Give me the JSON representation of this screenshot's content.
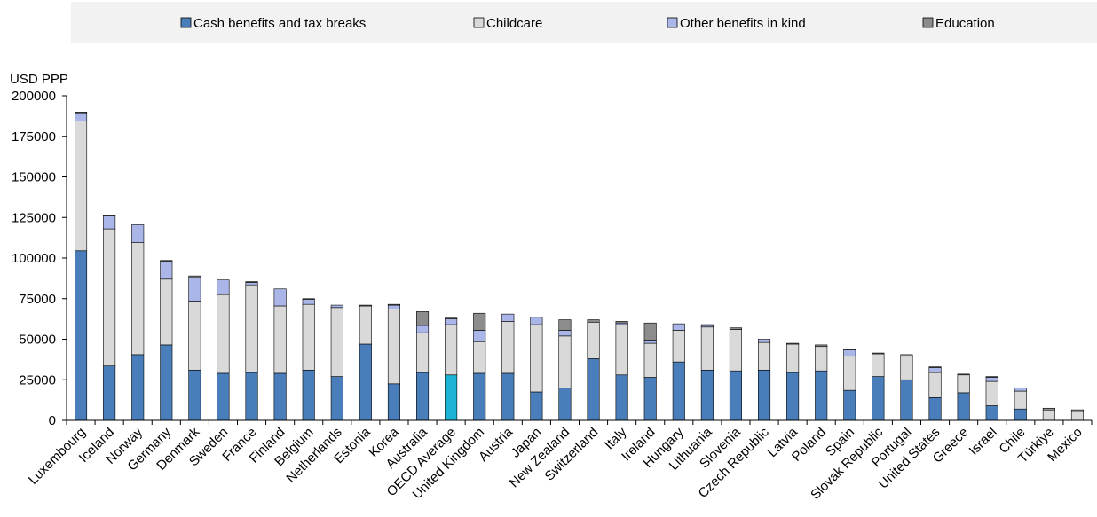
{
  "chart_data": {
    "type": "bar",
    "stacked": true,
    "ylabel": "USD PPP",
    "ylim": [
      0,
      200000
    ],
    "yticks": [
      0,
      25000,
      50000,
      75000,
      100000,
      125000,
      150000,
      175000,
      200000
    ],
    "legend_position": "top",
    "categories": [
      "Luxembourg",
      "Iceland",
      "Norway",
      "Germany",
      "Denmark",
      "Sweden",
      "France",
      "Finland",
      "Belgium",
      "Netherlands",
      "Estonia",
      "Korea",
      "Australia",
      "OECD Average",
      "United Kingdom",
      "Austria",
      "Japan",
      "New Zealand",
      "Switzerland",
      "Italy",
      "Ireland",
      "Hungary",
      "Lithuania",
      "Slovenia",
      "Czech Republic",
      "Latvia",
      "Poland",
      "Spain",
      "Slovak Republic",
      "Portugal",
      "United States",
      "Greece",
      "Israel",
      "Chile",
      "Türkiye",
      "Mexico"
    ],
    "highlight": {
      "category": "OECD Average",
      "color": "#1bb3d6"
    },
    "series": [
      {
        "name": "Cash benefits and tax breaks",
        "color": "#4a7ebb",
        "values": [
          104500,
          33500,
          40500,
          46500,
          31000,
          29000,
          29500,
          29000,
          31000,
          27000,
          47000,
          22500,
          29500,
          28000,
          29000,
          29000,
          17500,
          20000,
          38000,
          28000,
          26500,
          36000,
          31000,
          30500,
          31000,
          29500,
          30500,
          18500,
          27000,
          25000,
          14000,
          17000,
          9000,
          7000,
          0,
          0
        ]
      },
      {
        "name": "Childcare",
        "color": "#d9d9d9",
        "values": [
          80000,
          84500,
          69000,
          40500,
          42500,
          48500,
          54000,
          41500,
          40500,
          42500,
          23500,
          46000,
          24500,
          31000,
          19500,
          32000,
          41500,
          32000,
          22500,
          31000,
          21000,
          19500,
          26500,
          25500,
          17000,
          17500,
          15000,
          21000,
          14000,
          14500,
          15500,
          11000,
          15000,
          11000,
          6000,
          5500
        ]
      },
      {
        "name": "Other benefits in kind",
        "color": "#aab6e8",
        "values": [
          5000,
          8000,
          11000,
          11000,
          14500,
          9000,
          1500,
          10500,
          3000,
          1500,
          0,
          2500,
          4500,
          3500,
          7000,
          4500,
          4500,
          3500,
          0,
          1000,
          2000,
          4000,
          1000,
          0,
          2000,
          0,
          0,
          4000,
          0,
          0,
          3000,
          0,
          2500,
          2000,
          0,
          0
        ]
      },
      {
        "name": "Education",
        "color": "#8c8c8c",
        "values": [
          500,
          500,
          0,
          500,
          1000,
          0,
          500,
          0,
          500,
          0,
          500,
          500,
          8500,
          500,
          10500,
          0,
          0,
          6500,
          1500,
          1000,
          10500,
          0,
          500,
          1000,
          0,
          500,
          1000,
          500,
          500,
          1000,
          500,
          500,
          500,
          0,
          1500,
          1000
        ]
      }
    ]
  }
}
